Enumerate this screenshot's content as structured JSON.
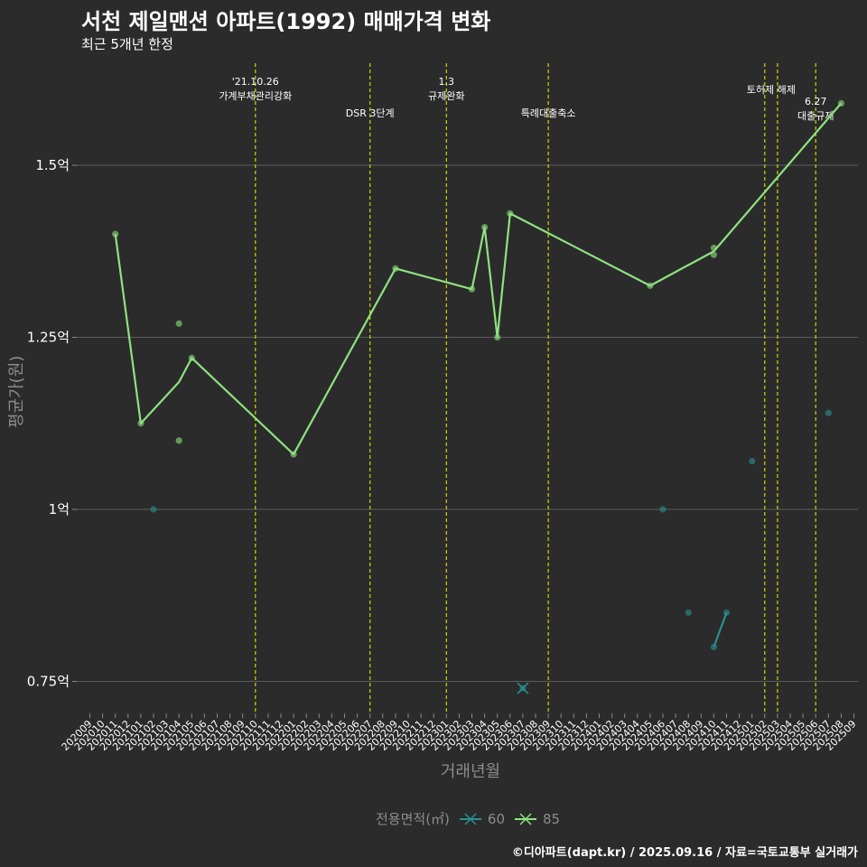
{
  "chart_data": {
    "type": "line",
    "title": "서천 제일맨션 아파트(1992) 매매가격 변화",
    "subtitle": "최근 5개년 한정",
    "xlabel": "거래년월",
    "ylabel": "평균가(원)",
    "caption": "©디아파트(dapt.kr) / 2025.09.16 / 자료=국토교통부 실거래가",
    "legend_title": "전용면적(㎡)",
    "legend_placement": "bottom",
    "y_unit": "억",
    "ylim": [
      0.7,
      1.68
    ],
    "yticks": [
      0.75,
      1.0,
      1.25,
      1.5
    ],
    "ytick_labels": [
      "0.75억",
      "1억",
      "1.25억",
      "1.5억"
    ],
    "categories": [
      "202009",
      "202010",
      "202011",
      "202012",
      "202101",
      "202102",
      "202103",
      "202104",
      "202105",
      "202106",
      "202107",
      "202108",
      "202109",
      "202110",
      "202111",
      "202112",
      "202201",
      "202202",
      "202203",
      "202204",
      "202205",
      "202206",
      "202207",
      "202208",
      "202209",
      "202210",
      "202211",
      "202212",
      "202301",
      "202302",
      "202303",
      "202304",
      "202305",
      "202306",
      "202307",
      "202308",
      "202309",
      "202310",
      "202311",
      "202312",
      "202401",
      "202402",
      "202403",
      "202404",
      "202405",
      "202406",
      "202407",
      "202408",
      "202409",
      "202410",
      "202411",
      "202412",
      "202501",
      "202502",
      "202503",
      "202504",
      "202505",
      "202506",
      "202507",
      "202508",
      "202509"
    ],
    "series": [
      {
        "name": "60",
        "color": "#2a8f8f",
        "points": [
          {
            "x": "202102",
            "y": 1.0
          },
          {
            "x": "202307",
            "y": 0.74
          },
          {
            "x": "202406",
            "y": 1.0
          },
          {
            "x": "202408",
            "y": 0.85
          },
          {
            "x": "202410",
            "y": 0.8
          },
          {
            "x": "202411",
            "y": 0.85
          },
          {
            "x": "202501",
            "y": 1.07
          },
          {
            "x": "202507",
            "y": 1.14
          }
        ],
        "line": [
          {
            "x": "202307",
            "y": 0.74
          },
          {
            "x": "202410",
            "y": 0.8
          },
          {
            "x": "202411",
            "y": 0.85
          }
        ],
        "line_segments": [
          [
            4,
            5
          ]
        ]
      },
      {
        "name": "85",
        "color": "#8ee27e",
        "points": [
          {
            "x": "202011",
            "y": 1.4
          },
          {
            "x": "202101",
            "y": 1.125
          },
          {
            "x": "202104",
            "y": 1.27
          },
          {
            "x": "202104",
            "y": 1.1
          },
          {
            "x": "202105",
            "y": 1.22
          },
          {
            "x": "202201",
            "y": 1.08
          },
          {
            "x": "202209",
            "y": 1.35
          },
          {
            "x": "202303",
            "y": 1.32
          },
          {
            "x": "202304",
            "y": 1.41
          },
          {
            "x": "202305",
            "y": 1.25
          },
          {
            "x": "202306",
            "y": 1.43
          },
          {
            "x": "202405",
            "y": 1.325
          },
          {
            "x": "202410",
            "y": 1.38
          },
          {
            "x": "202410",
            "y": 1.37
          },
          {
            "x": "202508",
            "y": 1.59
          }
        ],
        "line": [
          {
            "x": "202011",
            "y": 1.4
          },
          {
            "x": "202101",
            "y": 1.125
          },
          {
            "x": "202104",
            "y": 1.185
          },
          {
            "x": "202105",
            "y": 1.22
          },
          {
            "x": "202201",
            "y": 1.08
          },
          {
            "x": "202209",
            "y": 1.35
          },
          {
            "x": "202303",
            "y": 1.32
          },
          {
            "x": "202304",
            "y": 1.41
          },
          {
            "x": "202305",
            "y": 1.25
          },
          {
            "x": "202306",
            "y": 1.43
          },
          {
            "x": "202405",
            "y": 1.325
          },
          {
            "x": "202410",
            "y": 1.375
          },
          {
            "x": "202508",
            "y": 1.59
          }
        ]
      }
    ],
    "events": [
      {
        "x": "202110",
        "lines": [
          "'21.10.26",
          "가계부채관리강화"
        ],
        "row": 0
      },
      {
        "x": "202207",
        "lines": [
          "DSR 3단계"
        ],
        "row": 1
      },
      {
        "x": "202301",
        "lines": [
          "1.3",
          "규제완화"
        ],
        "row": 0
      },
      {
        "x": "202309",
        "lines": [
          "특례대출축소"
        ],
        "row": 1
      },
      {
        "x": "202502",
        "lines": [],
        "row": 0
      },
      {
        "x": "202503",
        "lines": [
          "토허제 해제"
        ],
        "row": 0,
        "label_shift": -1
      },
      {
        "x": "202506",
        "lines": [
          "6.27",
          "대출규제"
        ],
        "row": 1
      }
    ]
  }
}
